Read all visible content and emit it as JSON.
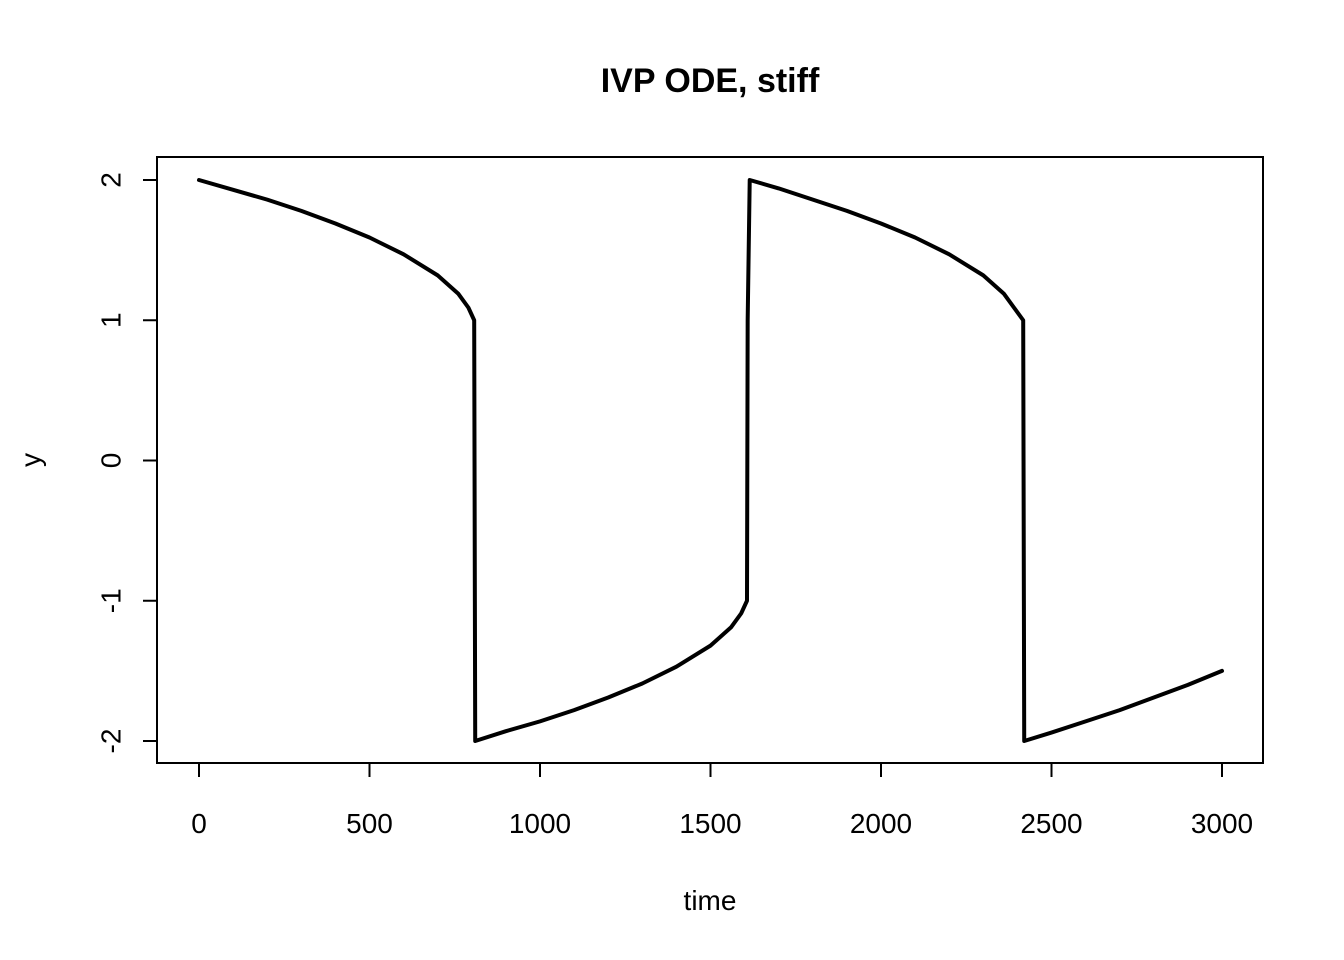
{
  "chart_data": {
    "type": "line",
    "title": "IVP ODE, stiff",
    "xlabel": "time",
    "ylabel": "y",
    "xlim": [
      0,
      3000
    ],
    "ylim": [
      -2,
      2
    ],
    "x_ticks": [
      0,
      500,
      1000,
      1500,
      2000,
      2500,
      3000
    ],
    "y_ticks": [
      -2,
      -1,
      0,
      1,
      2
    ],
    "grid": false,
    "legend": "none",
    "series": [
      {
        "color": "#000000",
        "points": [
          [
            0,
            2.0
          ],
          [
            100,
            1.93
          ],
          [
            200,
            1.86
          ],
          [
            300,
            1.78
          ],
          [
            400,
            1.69
          ],
          [
            500,
            1.59
          ],
          [
            600,
            1.47
          ],
          [
            700,
            1.32
          ],
          [
            760,
            1.19
          ],
          [
            790,
            1.09
          ],
          [
            807,
            1.0
          ],
          [
            808,
            0.0
          ],
          [
            809,
            -1.0
          ],
          [
            810,
            -2.0
          ],
          [
            900,
            -1.93
          ],
          [
            1000,
            -1.86
          ],
          [
            1100,
            -1.78
          ],
          [
            1200,
            -1.69
          ],
          [
            1300,
            -1.59
          ],
          [
            1400,
            -1.47
          ],
          [
            1500,
            -1.32
          ],
          [
            1560,
            -1.19
          ],
          [
            1590,
            -1.09
          ],
          [
            1607,
            -1.0
          ],
          [
            1608,
            0.0
          ],
          [
            1609,
            1.0
          ],
          [
            1615,
            2.0
          ],
          [
            1700,
            1.94
          ],
          [
            1800,
            1.86
          ],
          [
            1900,
            1.78
          ],
          [
            2000,
            1.69
          ],
          [
            2100,
            1.59
          ],
          [
            2200,
            1.47
          ],
          [
            2300,
            1.32
          ],
          [
            2360,
            1.19
          ],
          [
            2390,
            1.09
          ],
          [
            2417,
            1.0
          ],
          [
            2418,
            0.0
          ],
          [
            2419,
            -1.0
          ],
          [
            2420,
            -2.0
          ],
          [
            2500,
            -1.94
          ],
          [
            2600,
            -1.86
          ],
          [
            2700,
            -1.78
          ],
          [
            2800,
            -1.69
          ],
          [
            2900,
            -1.6
          ],
          [
            3000,
            -1.5
          ]
        ]
      }
    ]
  }
}
